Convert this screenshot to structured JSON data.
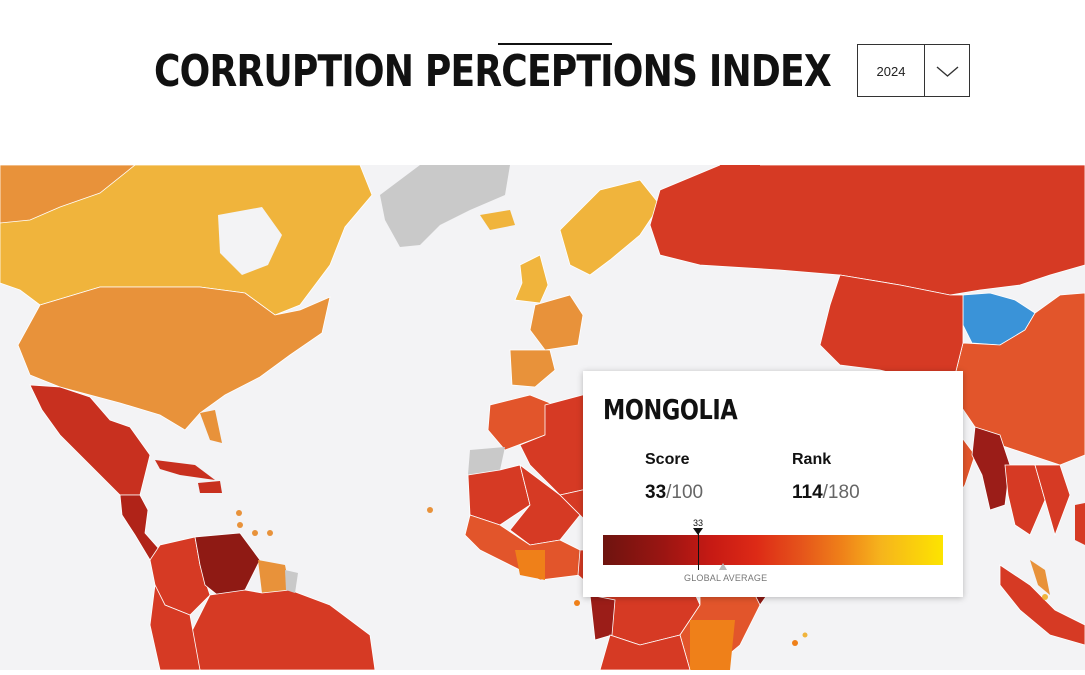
{
  "header": {
    "title": "CORRUPTION PERCEPTIONS INDEX",
    "year_selected": "2024"
  },
  "tooltip": {
    "country": "MONGOLIA",
    "score_label": "Score",
    "score_value": "33",
    "score_max": "/100",
    "rank_label": "Rank",
    "rank_value": "114",
    "rank_max": "/180",
    "scale_marker": "33",
    "scale_fraction": 0.33,
    "global_average_label": "GLOBAL AVERAGE"
  },
  "colors": {
    "very_clean": "#fde400",
    "clean": "#f0b43c",
    "mid_clean": "#e8923a",
    "mid": "#e2552b",
    "corrupt": "#d63a24",
    "very_corrupt": "#9b1d18",
    "highlighted": "#3a93d8",
    "no_data": "#c9c9c9",
    "ocean": "#f3f3f5"
  }
}
